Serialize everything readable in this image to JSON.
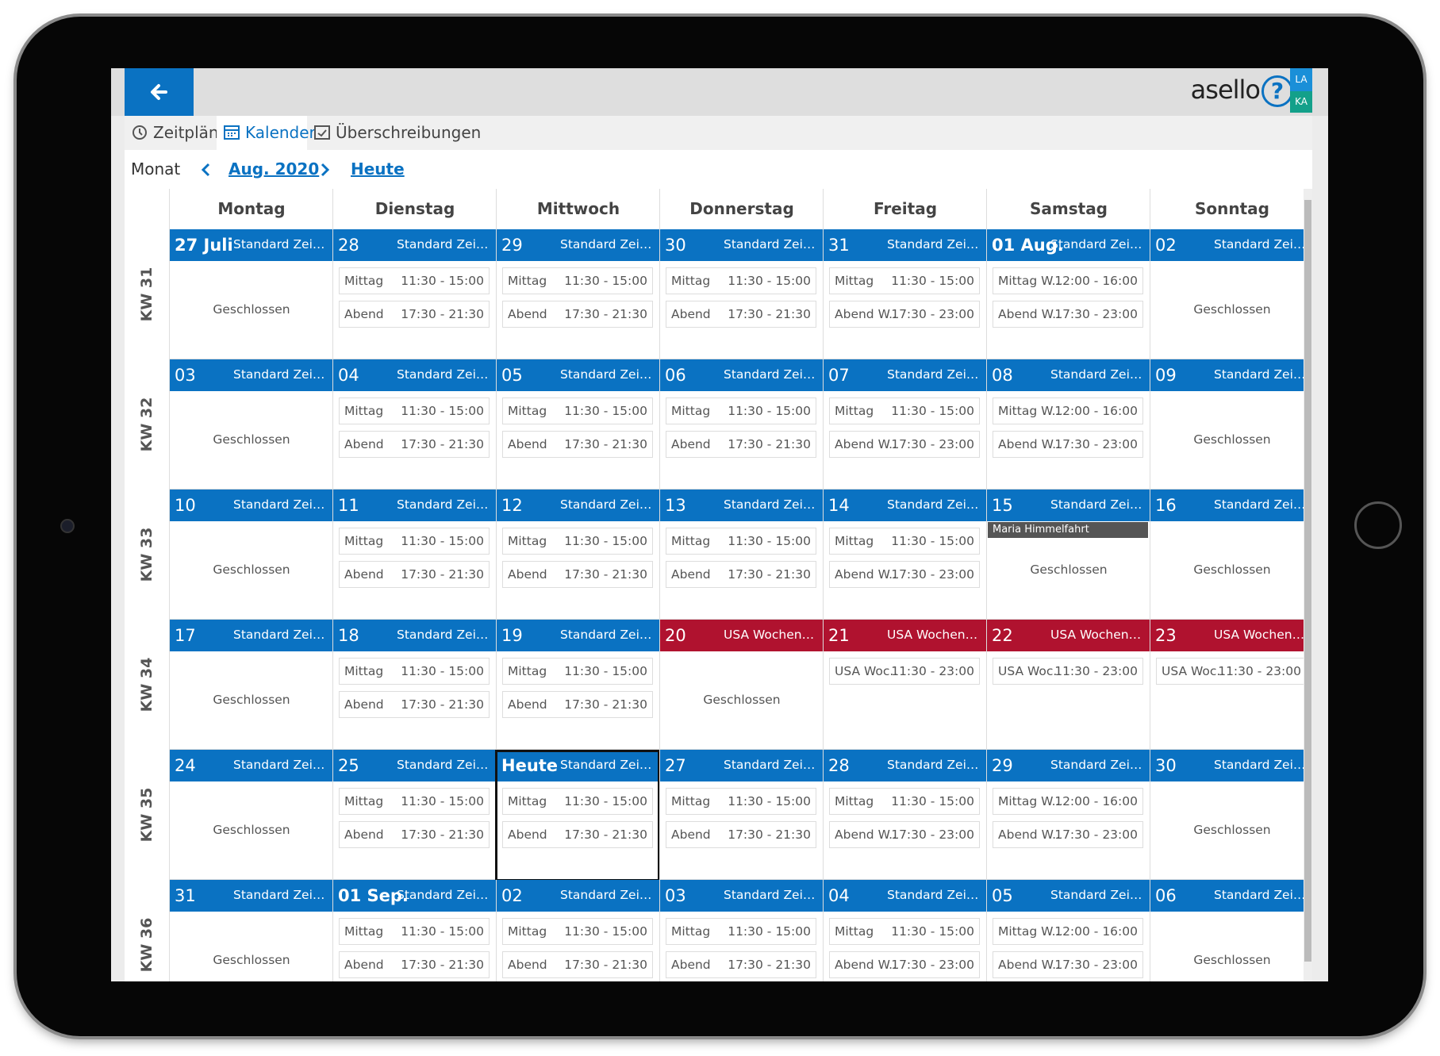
{
  "header": {
    "logo": "asello",
    "help": "?",
    "badges": [
      "LA",
      "KA"
    ]
  },
  "tabs": [
    "Zeitpläne",
    "Kalender",
    "Überschreibungen"
  ],
  "active_tab": 1,
  "toolbar": {
    "view": "Monat",
    "month": "Aug. 2020",
    "today": "Heute"
  },
  "weekdays": [
    "Montag",
    "Dienstag",
    "Mittwoch",
    "Donnerstag",
    "Freitag",
    "Samstag",
    "Sonntag"
  ],
  "weeks": [
    {
      "label": "KW 31",
      "days": [
        {
          "date": "27 Juli",
          "schedule": "Standard Zeitplan",
          "color": "#0a72c2",
          "closed": "Geschlossen"
        },
        {
          "date": "28",
          "schedule": "Standard Zeitplan",
          "color": "#0a72c2",
          "slots": [
            {
              "name": "Mittag",
              "time": "11:30 - 15:00"
            },
            {
              "name": "Abend",
              "time": "17:30 - 21:30"
            }
          ]
        },
        {
          "date": "29",
          "schedule": "Standard Zeitplan",
          "color": "#0a72c2",
          "slots": [
            {
              "name": "Mittag",
              "time": "11:30 - 15:00"
            },
            {
              "name": "Abend",
              "time": "17:30 - 21:30"
            }
          ]
        },
        {
          "date": "30",
          "schedule": "Standard Zeitplan",
          "color": "#0a72c2",
          "slots": [
            {
              "name": "Mittag",
              "time": "11:30 - 15:00"
            },
            {
              "name": "Abend",
              "time": "17:30 - 21:30"
            }
          ]
        },
        {
          "date": "31",
          "schedule": "Standard Zeitplan",
          "color": "#0a72c2",
          "slots": [
            {
              "name": "Mittag",
              "time": "11:30 - 15:00"
            },
            {
              "name": "Abend W...",
              "time": "17:30 - 23:00"
            }
          ]
        },
        {
          "date": "01 Aug.",
          "schedule": "Standard Zeitp...",
          "color": "#0a72c2",
          "slots": [
            {
              "name": "Mittag W...",
              "time": "12:00 - 16:00"
            },
            {
              "name": "Abend W...",
              "time": "17:30 - 23:00"
            }
          ]
        },
        {
          "date": "02",
          "schedule": "Standard Zeitplan",
          "color": "#0a72c2",
          "closed": "Geschlossen"
        }
      ]
    },
    {
      "label": "KW 32",
      "days": [
        {
          "date": "03",
          "schedule": "Standard Zeitplan",
          "color": "#0a72c2",
          "closed": "Geschlossen"
        },
        {
          "date": "04",
          "schedule": "Standard Zeitplan",
          "color": "#0a72c2",
          "slots": [
            {
              "name": "Mittag",
              "time": "11:30 - 15:00"
            },
            {
              "name": "Abend",
              "time": "17:30 - 21:30"
            }
          ]
        },
        {
          "date": "05",
          "schedule": "Standard Zeitplan",
          "color": "#0a72c2",
          "slots": [
            {
              "name": "Mittag",
              "time": "11:30 - 15:00"
            },
            {
              "name": "Abend",
              "time": "17:30 - 21:30"
            }
          ]
        },
        {
          "date": "06",
          "schedule": "Standard Zeitplan",
          "color": "#0a72c2",
          "slots": [
            {
              "name": "Mittag",
              "time": "11:30 - 15:00"
            },
            {
              "name": "Abend",
              "time": "17:30 - 21:30"
            }
          ]
        },
        {
          "date": "07",
          "schedule": "Standard Zeitplan",
          "color": "#0a72c2",
          "slots": [
            {
              "name": "Mittag",
              "time": "11:30 - 15:00"
            },
            {
              "name": "Abend W...",
              "time": "17:30 - 23:00"
            }
          ]
        },
        {
          "date": "08",
          "schedule": "Standard Zeitplan",
          "color": "#0a72c2",
          "slots": [
            {
              "name": "Mittag W...",
              "time": "12:00 - 16:00"
            },
            {
              "name": "Abend W...",
              "time": "17:30 - 23:00"
            }
          ]
        },
        {
          "date": "09",
          "schedule": "Standard Zeitplan",
          "color": "#0a72c2",
          "closed": "Geschlossen"
        }
      ]
    },
    {
      "label": "KW 33",
      "days": [
        {
          "date": "10",
          "schedule": "Standard Zeitplan",
          "color": "#0a72c2",
          "closed": "Geschlossen"
        },
        {
          "date": "11",
          "schedule": "Standard Zeitplan",
          "color": "#0a72c2",
          "slots": [
            {
              "name": "Mittag",
              "time": "11:30 - 15:00"
            },
            {
              "name": "Abend",
              "time": "17:30 - 21:30"
            }
          ]
        },
        {
          "date": "12",
          "schedule": "Standard Zeitplan",
          "color": "#0a72c2",
          "slots": [
            {
              "name": "Mittag",
              "time": "11:30 - 15:00"
            },
            {
              "name": "Abend",
              "time": "17:30 - 21:30"
            }
          ]
        },
        {
          "date": "13",
          "schedule": "Standard Zeitplan",
          "color": "#0a72c2",
          "slots": [
            {
              "name": "Mittag",
              "time": "11:30 - 15:00"
            },
            {
              "name": "Abend",
              "time": "17:30 - 21:30"
            }
          ]
        },
        {
          "date": "14",
          "schedule": "Standard Zeitplan",
          "color": "#0a72c2",
          "slots": [
            {
              "name": "Mittag",
              "time": "11:30 - 15:00"
            },
            {
              "name": "Abend W...",
              "time": "17:30 - 23:00"
            }
          ]
        },
        {
          "date": "15",
          "schedule": "Standard Zeitplan",
          "color": "#0a72c2",
          "note": "Maria Himmelfahrt",
          "closed": "Geschlossen"
        },
        {
          "date": "16",
          "schedule": "Standard Zeitplan",
          "color": "#0a72c2",
          "closed": "Geschlossen"
        }
      ]
    },
    {
      "label": "KW 34",
      "days": [
        {
          "date": "17",
          "schedule": "Standard Zeitplan",
          "color": "#0a72c2",
          "closed": "Geschlossen"
        },
        {
          "date": "18",
          "schedule": "Standard Zeitplan",
          "color": "#0a72c2",
          "slots": [
            {
              "name": "Mittag",
              "time": "11:30 - 15:00"
            },
            {
              "name": "Abend",
              "time": "17:30 - 21:30"
            }
          ]
        },
        {
          "date": "19",
          "schedule": "Standard Zeitplan",
          "color": "#0a72c2",
          "slots": [
            {
              "name": "Mittag",
              "time": "11:30 - 15:00"
            },
            {
              "name": "Abend",
              "time": "17:30 - 21:30"
            }
          ]
        },
        {
          "date": "20",
          "schedule": "USA Wochenende",
          "color": "#b0122f",
          "closed": "Geschlossen"
        },
        {
          "date": "21",
          "schedule": "USA Wochenende",
          "color": "#b0122f",
          "slots": [
            {
              "name": "USA Woc...",
              "time": "11:30 - 23:00"
            }
          ]
        },
        {
          "date": "22",
          "schedule": "USA Wochenende",
          "color": "#b0122f",
          "slots": [
            {
              "name": "USA Woc...",
              "time": "11:30 - 23:00"
            }
          ]
        },
        {
          "date": "23",
          "schedule": "USA Wochenende",
          "color": "#b0122f",
          "slots": [
            {
              "name": "USA Woc...",
              "time": "11:30 - 23:00"
            }
          ]
        }
      ]
    },
    {
      "label": "KW 35",
      "days": [
        {
          "date": "24",
          "schedule": "Standard Zeitplan",
          "color": "#0a72c2",
          "closed": "Geschlossen"
        },
        {
          "date": "25",
          "schedule": "Standard Zeitplan",
          "color": "#0a72c2",
          "slots": [
            {
              "name": "Mittag",
              "time": "11:30 - 15:00"
            },
            {
              "name": "Abend",
              "time": "17:30 - 21:30"
            }
          ]
        },
        {
          "date": "Heute",
          "schedule": "Standard Zeitplan",
          "color": "#0a72c2",
          "today": true,
          "slots": [
            {
              "name": "Mittag",
              "time": "11:30 - 15:00"
            },
            {
              "name": "Abend",
              "time": "17:30 - 21:30"
            }
          ]
        },
        {
          "date": "27",
          "schedule": "Standard Zeitplan",
          "color": "#0a72c2",
          "slots": [
            {
              "name": "Mittag",
              "time": "11:30 - 15:00"
            },
            {
              "name": "Abend",
              "time": "17:30 - 21:30"
            }
          ]
        },
        {
          "date": "28",
          "schedule": "Standard Zeitplan",
          "color": "#0a72c2",
          "slots": [
            {
              "name": "Mittag",
              "time": "11:30 - 15:00"
            },
            {
              "name": "Abend W...",
              "time": "17:30 - 23:00"
            }
          ]
        },
        {
          "date": "29",
          "schedule": "Standard Zeitplan",
          "color": "#0a72c2",
          "slots": [
            {
              "name": "Mittag W...",
              "time": "12:00 - 16:00"
            },
            {
              "name": "Abend W...",
              "time": "17:30 - 23:00"
            }
          ]
        },
        {
          "date": "30",
          "schedule": "Standard Zeitplan",
          "color": "#0a72c2",
          "closed": "Geschlossen"
        }
      ]
    },
    {
      "label": "KW 36",
      "days": [
        {
          "date": "31",
          "schedule": "Standard Zeitplan",
          "color": "#0a72c2",
          "closed": "Geschlossen"
        },
        {
          "date": "01 Sep.",
          "schedule": "Standard Zeitp...",
          "color": "#0a72c2",
          "slots": [
            {
              "name": "Mittag",
              "time": "11:30 - 15:00"
            },
            {
              "name": "Abend",
              "time": "17:30 - 21:30"
            }
          ]
        },
        {
          "date": "02",
          "schedule": "Standard Zeitplan",
          "color": "#0a72c2",
          "slots": [
            {
              "name": "Mittag",
              "time": "11:30 - 15:00"
            },
            {
              "name": "Abend",
              "time": "17:30 - 21:30"
            }
          ]
        },
        {
          "date": "03",
          "schedule": "Standard Zeitplan",
          "color": "#0a72c2",
          "slots": [
            {
              "name": "Mittag",
              "time": "11:30 - 15:00"
            },
            {
              "name": "Abend",
              "time": "17:30 - 21:30"
            }
          ]
        },
        {
          "date": "04",
          "schedule": "Standard Zeitplan",
          "color": "#0a72c2",
          "slots": [
            {
              "name": "Mittag",
              "time": "11:30 - 15:00"
            },
            {
              "name": "Abend W...",
              "time": "17:30 - 23:00"
            }
          ]
        },
        {
          "date": "05",
          "schedule": "Standard Zeitplan",
          "color": "#0a72c2",
          "slots": [
            {
              "name": "Mittag W...",
              "time": "12:00 - 16:00"
            },
            {
              "name": "Abend W...",
              "time": "17:30 - 23:00"
            }
          ]
        },
        {
          "date": "06",
          "schedule": "Standard Zeitplan",
          "color": "#0a72c2",
          "closed": "Geschlossen"
        }
      ]
    }
  ]
}
